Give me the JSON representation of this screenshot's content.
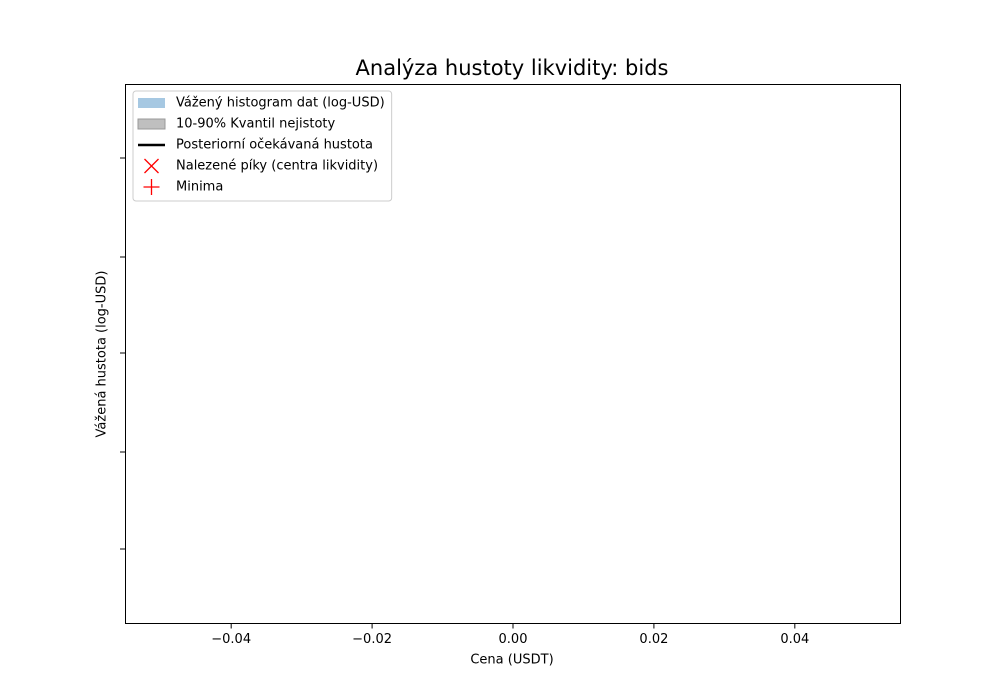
{
  "chart_data": {
    "type": "histogram",
    "title": "Analýza hustoty likvidity: bids",
    "x_label": "Cena (USDT)",
    "y_label": "Vážená hustota (log-USD)",
    "xlim": [
      -0.055,
      0.055
    ],
    "xticks": [
      {
        "value": -0.04,
        "label": "−0.04"
      },
      {
        "value": -0.02,
        "label": "−0.02"
      },
      {
        "value": 0,
        "label": "0.00"
      },
      {
        "value": 0.02,
        "label": "0.02"
      },
      {
        "value": 0.04,
        "label": "0.04"
      }
    ],
    "legend": "upper left",
    "series": [
      {
        "name": "Vážený histogram dat (log-USD)",
        "color": "#a6c8e2",
        "style": "patch",
        "values": []
      },
      {
        "name": "10-90% Kvantil nejistoty",
        "color": "#bfbfbf",
        "style": "patch",
        "values": []
      },
      {
        "name": "Posteriorní očekávaná hustota",
        "color": "#000000",
        "style": "line",
        "values": []
      },
      {
        "name": "Nalezené píky (centra likvidity)",
        "color": "#ff0000",
        "style": "x",
        "values": []
      },
      {
        "name": "Minima",
        "color": "#ff0000",
        "style": "+",
        "values": []
      }
    ]
  }
}
